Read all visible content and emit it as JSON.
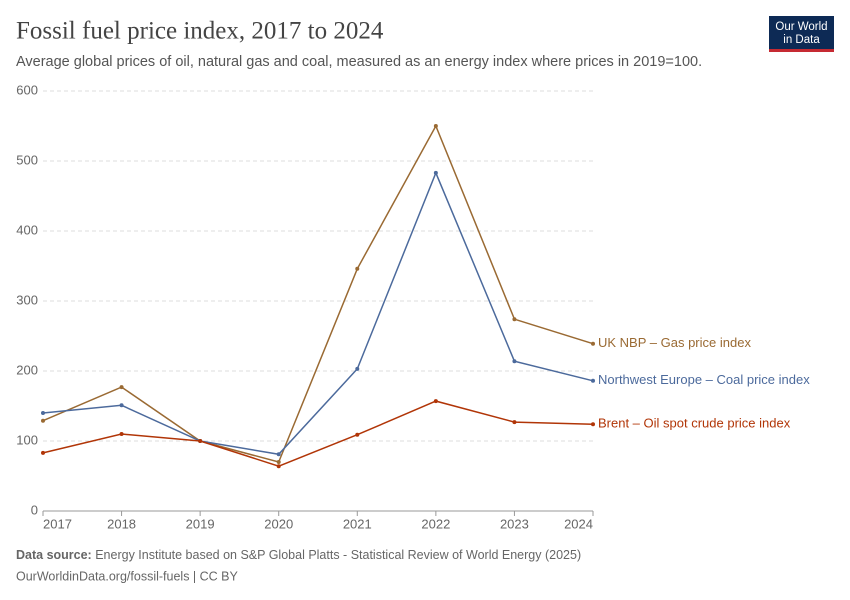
{
  "chart_data": {
    "type": "line",
    "title": "Fossil fuel price index, 2017 to 2024",
    "subtitle": "Average global prices of oil, natural gas and coal, measured as an energy index where prices in 2019=100.",
    "logo": [
      "Our World",
      "in Data"
    ],
    "source_label": "Data source:",
    "source": "Energy Institute based on S&P Global Platts - Statistical Review of World Energy (2025)",
    "footer": "OurWorldinData.org/fossil-fuels | CC BY",
    "x": [
      2017,
      2018,
      2019,
      2020,
      2021,
      2022,
      2023,
      2024
    ],
    "xlim": [
      2017,
      2024
    ],
    "xticks": [
      2017,
      2018,
      2019,
      2020,
      2021,
      2022,
      2023,
      2024
    ],
    "ylim": [
      0,
      600
    ],
    "yticks": [
      0,
      100,
      200,
      300,
      400,
      500,
      600
    ],
    "grid": true,
    "series": [
      {
        "name": "UK NBP – Gas price index",
        "color": "#9a6a33",
        "values": [
          129,
          177,
          100,
          70,
          346,
          550,
          274,
          239
        ]
      },
      {
        "name": "Northwest Europe – Coal price index",
        "color": "#4c6a9c",
        "values": [
          140,
          151,
          100,
          81,
          203,
          483,
          214,
          186
        ]
      },
      {
        "name": "Brent – Oil spot crude price index",
        "color": "#b13507",
        "values": [
          83,
          110,
          100,
          64,
          109,
          157,
          127,
          124
        ]
      }
    ]
  }
}
